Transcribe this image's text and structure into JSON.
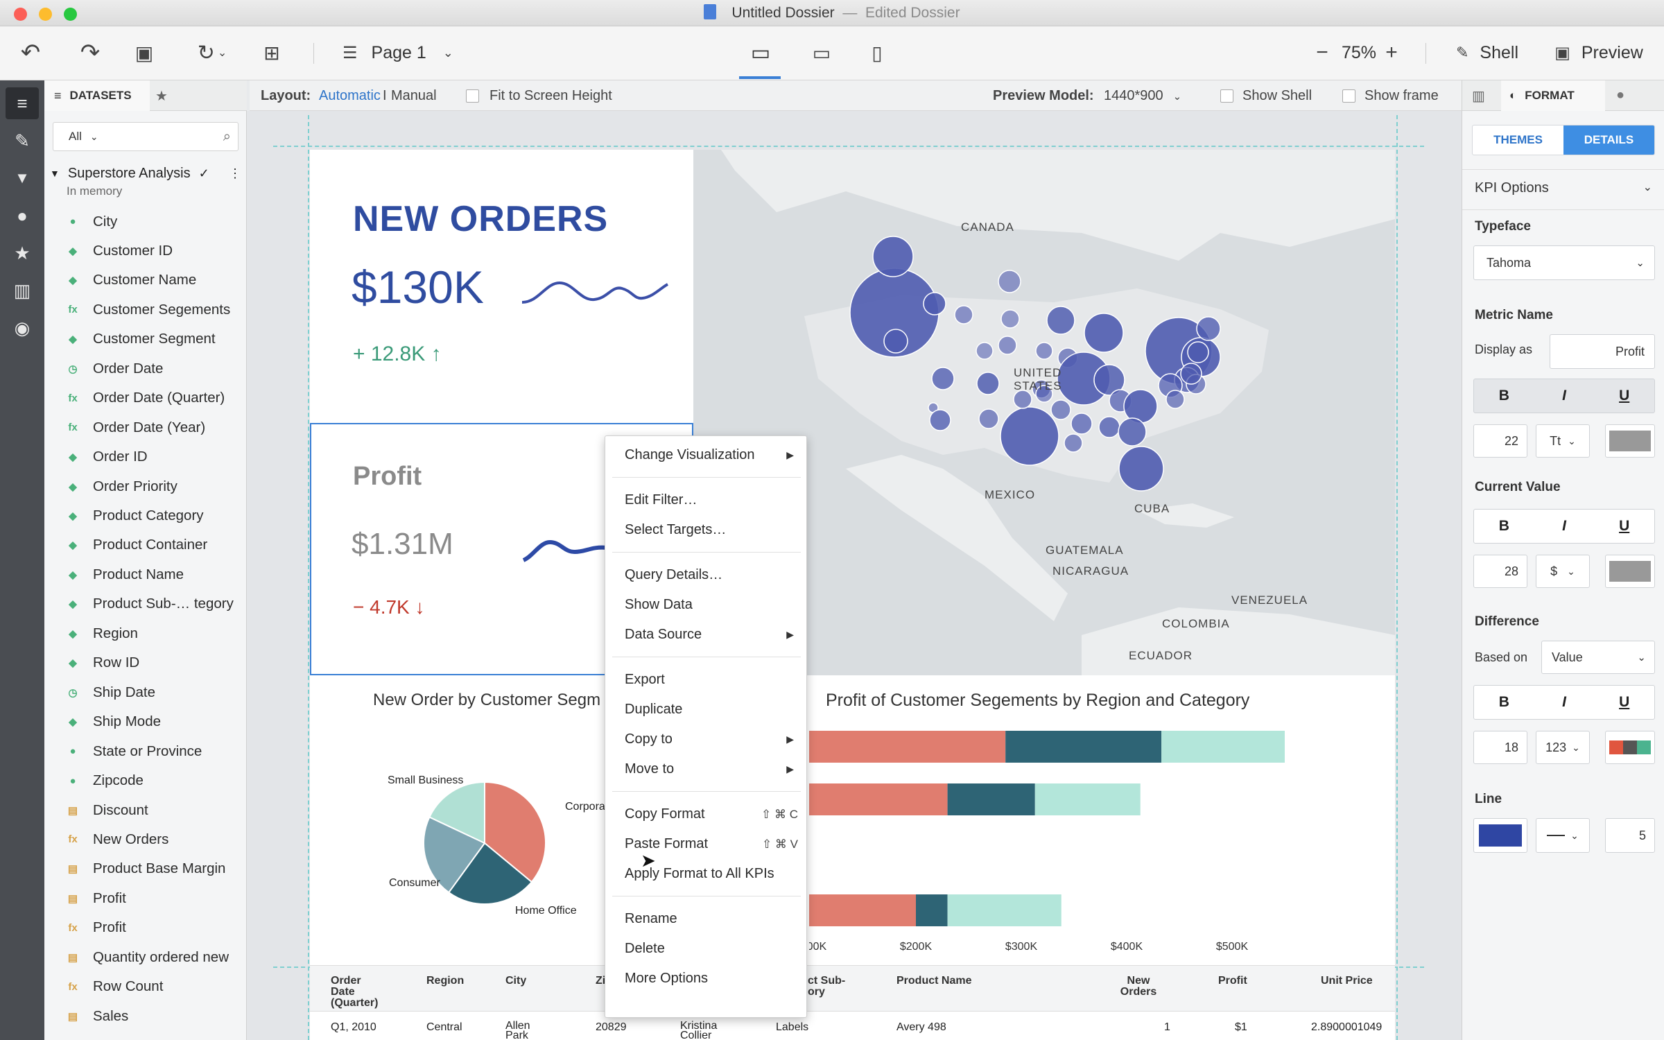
{
  "window": {
    "title": "Untitled Dossier",
    "separator": "—",
    "subtitle": "Edited Dossier"
  },
  "toolbar": {
    "page_label": "Page 1",
    "zoom": "75%",
    "zoom_minus": "−",
    "zoom_plus": "+",
    "shell_label": "Shell",
    "preview_label": "Preview"
  },
  "options": {
    "layout_label": "Layout:",
    "layout_automatic": "Automatic",
    "layout_separator": "I",
    "layout_manual": "Manual",
    "fit_label": "Fit to Screen Height",
    "preview_model_label": "Preview Model:",
    "preview_model_value": "1440*900",
    "show_shell": "Show Shell",
    "show_frame": "Show frame"
  },
  "datasets": {
    "tab_label": "DATASETS",
    "filter_value": "All",
    "dataset_name": "Superstore Analysis",
    "dataset_status": "In memory",
    "fields": [
      {
        "label": "City",
        "kind": "geo"
      },
      {
        "label": "Customer ID",
        "kind": "attr"
      },
      {
        "label": "Customer Name",
        "kind": "attr"
      },
      {
        "label": "Customer Segements",
        "kind": "derived"
      },
      {
        "label": "Customer Segment",
        "kind": "attr"
      },
      {
        "label": "Order Date",
        "kind": "date"
      },
      {
        "label": "Order Date (Quarter)",
        "kind": "derived"
      },
      {
        "label": "Order Date (Year)",
        "kind": "derived"
      },
      {
        "label": "Order ID",
        "kind": "attr"
      },
      {
        "label": "Order Priority",
        "kind": "attr"
      },
      {
        "label": "Product Category",
        "kind": "attr"
      },
      {
        "label": "Product Container",
        "kind": "attr"
      },
      {
        "label": "Product Name",
        "kind": "attr"
      },
      {
        "label": "Product Sub-… tegory",
        "kind": "attr"
      },
      {
        "label": "Region",
        "kind": "attr"
      },
      {
        "label": "Row ID",
        "kind": "attr"
      },
      {
        "label": "Ship Date",
        "kind": "date"
      },
      {
        "label": "Ship Mode",
        "kind": "attr"
      },
      {
        "label": "State or Province",
        "kind": "geo"
      },
      {
        "label": "Zipcode",
        "kind": "geo"
      },
      {
        "label": "Discount",
        "kind": "metric"
      },
      {
        "label": "New Orders",
        "kind": "fxmetric"
      },
      {
        "label": "Product Base Margin",
        "kind": "metric"
      },
      {
        "label": "Profit",
        "kind": "metric"
      },
      {
        "label": "Profit",
        "kind": "fxmetric"
      },
      {
        "label": "Quantity ordered new",
        "kind": "metric"
      },
      {
        "label": "Row Count",
        "kind": "fxmetric"
      },
      {
        "label": "Sales",
        "kind": "metric"
      }
    ]
  },
  "kpi_new_orders": {
    "title": "NEW ORDERS",
    "value": "$130K",
    "diff": "+ 12.8K ↑",
    "title_color": "#2f4ca0",
    "diff_color": "#3a9a78"
  },
  "kpi_profit": {
    "title": "Profit",
    "value": "$1.31M",
    "diff": "− 4.7K ↓",
    "diff_color": "#c0392b"
  },
  "map": {
    "labels": [
      "CANADA",
      "UNITED STATES",
      "MEXICO",
      "CUBA",
      "GUATEMALA",
      "NICARAGUA",
      "VENEZUELA",
      "COLOMBIA",
      "ECUADOR"
    ],
    "bubble_color": "#4f5cb0"
  },
  "pie_chart": {
    "title": "New Order by Customer Segm"
  },
  "bar_chart": {
    "title": "Profit of Customer Segements by Region and Category"
  },
  "chart_data": [
    {
      "type": "pie",
      "title": "New Order by Customer Segm",
      "slices": [
        {
          "label": "Corporate",
          "value": 36,
          "color": "#e07d6f"
        },
        {
          "label": "Home Office",
          "value": 24,
          "color": "#2e6475"
        },
        {
          "label": "Consumer",
          "value": 22,
          "color": "#7fa6b3"
        },
        {
          "label": "Small Business",
          "value": 18,
          "color": "#b0e0d4"
        }
      ]
    },
    {
      "type": "bar",
      "title": "Profit of Customer Segements by Region and Category",
      "orientation": "horizontal",
      "stacked": true,
      "x_ticks": [
        "$100K",
        "$200K",
        "$300K",
        "$400K",
        "$500K"
      ],
      "xlim": [
        0,
        550000
      ],
      "series": [
        {
          "color": "#8aa9b7",
          "values": [
            60000,
            60000,
            0,
            60000
          ]
        },
        {
          "color": "#e07d6f",
          "values": [
            225000,
            170000,
            0,
            140000
          ]
        },
        {
          "color": "#2e6475",
          "values": [
            148000,
            83000,
            45000,
            30000
          ]
        },
        {
          "color": "#b3e6da",
          "values": [
            117000,
            100000,
            15000,
            108000
          ]
        }
      ]
    }
  ],
  "context_menu": {
    "items": [
      {
        "label": "Change Visualization",
        "submenu": true
      },
      {
        "sep": true
      },
      {
        "label": "Edit Filter…"
      },
      {
        "label": "Select Targets…"
      },
      {
        "sep": true
      },
      {
        "label": "Query Details…"
      },
      {
        "label": "Show Data"
      },
      {
        "label": "Data Source",
        "submenu": true
      },
      {
        "sep": true
      },
      {
        "label": "Export"
      },
      {
        "label": "Duplicate"
      },
      {
        "label": "Copy to",
        "submenu": true
      },
      {
        "label": "Move to",
        "submenu": true
      },
      {
        "sep": true
      },
      {
        "label": "Copy Format",
        "shortcut": "⇧ ⌘ C"
      },
      {
        "label": "Paste Format",
        "shortcut": "⇧ ⌘ V"
      },
      {
        "label": "Apply Format to All KPIs"
      },
      {
        "sep": true
      },
      {
        "label": "Rename"
      },
      {
        "label": "Delete"
      },
      {
        "label": "More Options"
      }
    ]
  },
  "grid": {
    "headers": [
      "Order Date (Quarter)",
      "Region",
      "City",
      "Zi",
      "ct Sub-\nory",
      "Product Name",
      "New Orders",
      "Profit",
      "Unit Price"
    ],
    "row": [
      "Q1, 2010",
      "Central",
      "Allen Park",
      "20829",
      "Kristina Collier",
      "Labels",
      "Avery 498",
      "1",
      "$1",
      "2.8900001049"
    ]
  },
  "format_panel": {
    "tab_label": "FORMAT",
    "themes_tab": "THEMES",
    "details_tab": "DETAILS",
    "section": "KPI Options",
    "typeface_label": "Typeface",
    "typeface_value": "Tahoma",
    "metric_name_label": "Metric Name",
    "display_as_label": "Display as",
    "display_as_value": "Profit",
    "metric_size": "22",
    "metric_case": "Tt",
    "current_value_label": "Current Value",
    "current_size": "28",
    "current_format": "$",
    "difference_label": "Difference",
    "based_on_label": "Based on",
    "based_on_value": "Value",
    "difference_size": "18",
    "difference_format": "123",
    "line_label": "Line",
    "line_width": "5",
    "line_color": "#2f46a3",
    "bold": "B",
    "italic": "I",
    "underline": "U"
  }
}
